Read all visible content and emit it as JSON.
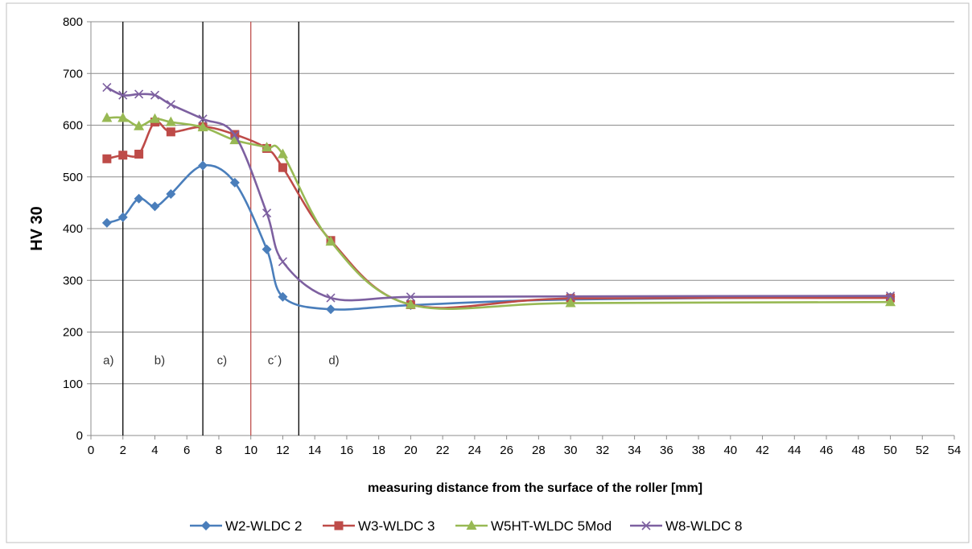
{
  "chart_data": {
    "type": "line",
    "title": "",
    "xlabel": "measuring distance from the surface of the roller [mm]",
    "ylabel": "HV 30",
    "xlim": [
      0,
      54
    ],
    "ylim": [
      0,
      800
    ],
    "x_ticks": [
      0,
      2,
      4,
      6,
      8,
      10,
      12,
      14,
      16,
      18,
      20,
      22,
      24,
      26,
      28,
      30,
      32,
      34,
      36,
      38,
      40,
      42,
      44,
      46,
      48,
      50,
      52,
      54
    ],
    "y_ticks": [
      0,
      100,
      200,
      300,
      400,
      500,
      600,
      700,
      800
    ],
    "grid": "horizontal",
    "legend_position": "bottom",
    "vertical_lines": [
      {
        "x": 2,
        "color": "#000000"
      },
      {
        "x": 7,
        "color": "#000000"
      },
      {
        "x": 10,
        "color": "#c0504d"
      },
      {
        "x": 13,
        "color": "#000000"
      }
    ],
    "zone_labels": [
      {
        "text": "a)",
        "x": 1.1,
        "y": 138
      },
      {
        "text": "b)",
        "x": 4.3,
        "y": 138
      },
      {
        "text": "c)",
        "x": 8.2,
        "y": 138
      },
      {
        "text": "c´)",
        "x": 11.5,
        "y": 138
      },
      {
        "text": "d)",
        "x": 15.2,
        "y": 138
      }
    ],
    "series": [
      {
        "name": "W2-WLDC 2",
        "color": "#4a7ebb",
        "marker": "diamond",
        "x": [
          1,
          2,
          3,
          4,
          5,
          7,
          9,
          11,
          12,
          15,
          20,
          30,
          50
        ],
        "y": [
          411,
          422,
          458,
          443,
          467,
          522,
          489,
          360,
          268,
          244,
          252,
          263,
          268
        ]
      },
      {
        "name": "W3-WLDC 3",
        "color": "#be4b48",
        "marker": "square",
        "x": [
          1,
          2,
          3,
          4,
          5,
          7,
          9,
          11,
          12,
          15,
          20,
          30,
          50
        ],
        "y": [
          535,
          542,
          544,
          606,
          587,
          597,
          582,
          555,
          518,
          377,
          253,
          265,
          266
        ]
      },
      {
        "name": "W5HT-WLDC 5Mod",
        "color": "#98b954",
        "marker": "triangle",
        "x": [
          1,
          2,
          3,
          4,
          5,
          7,
          9,
          11,
          12,
          15,
          20,
          30,
          50
        ],
        "y": [
          614,
          614,
          598,
          612,
          606,
          596,
          571,
          557,
          544,
          375,
          253,
          256,
          258
        ]
      },
      {
        "name": "W8-WLDC 8",
        "color": "#7d60a0",
        "marker": "x",
        "x": [
          1,
          2,
          3,
          4,
          5,
          7,
          9,
          11,
          12,
          15,
          20,
          30,
          50
        ],
        "y": [
          673,
          658,
          660,
          658,
          640,
          612,
          581,
          430,
          336,
          266,
          268,
          269,
          270
        ]
      }
    ]
  }
}
